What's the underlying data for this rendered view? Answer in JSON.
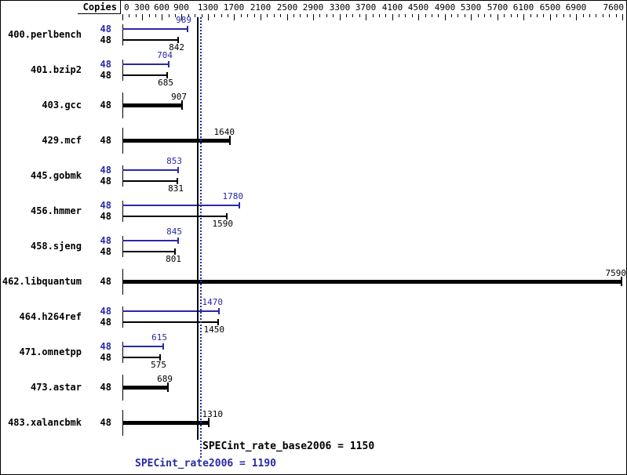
{
  "header": {
    "copies_label": "Copies"
  },
  "colors": {
    "peak_blue": "#2929a8",
    "base_black": "#000000",
    "background": "#ffffff"
  },
  "legend": {
    "base_text": "SPECint_rate_base2006 = 1150",
    "peak_text": "SPECint_rate2006 = 1190"
  },
  "chart_data": {
    "type": "bar",
    "orientation": "horizontal",
    "title": "",
    "xlabel": "",
    "ylabel": "Copies",
    "xlim": [
      0,
      7600
    ],
    "x_tick_step": 100,
    "x_labeled_ticks": [
      0,
      300,
      600,
      900,
      1300,
      1700,
      2100,
      2500,
      2900,
      3300,
      3700,
      4100,
      4500,
      4900,
      5300,
      5700,
      6100,
      6500,
      6900,
      7600
    ],
    "grid": false,
    "series_legend": [
      {
        "name": "peak (SPECint_rate2006)",
        "color": "#2929a8"
      },
      {
        "name": "base (SPECint_rate_base2006)",
        "color": "#000000"
      }
    ],
    "benchmarks": [
      {
        "name": "400.perlbench",
        "copies": 48,
        "peak": 989,
        "base": 842,
        "single_bar": false
      },
      {
        "name": "401.bzip2",
        "copies": 48,
        "peak": 704,
        "base": 685,
        "single_bar": false
      },
      {
        "name": "403.gcc",
        "copies": 48,
        "peak": null,
        "base": 907,
        "single_bar": true
      },
      {
        "name": "429.mcf",
        "copies": 48,
        "peak": null,
        "base": 1640,
        "single_bar": true
      },
      {
        "name": "445.gobmk",
        "copies": 48,
        "peak": 853,
        "base": 831,
        "single_bar": false
      },
      {
        "name": "456.hmmer",
        "copies": 48,
        "peak": 1780,
        "base": 1590,
        "single_bar": false
      },
      {
        "name": "458.sjeng",
        "copies": 48,
        "peak": 845,
        "base": 801,
        "single_bar": false
      },
      {
        "name": "462.libquantum",
        "copies": 48,
        "peak": null,
        "base": 7590,
        "single_bar": true
      },
      {
        "name": "464.h264ref",
        "copies": 48,
        "peak": 1470,
        "base": 1450,
        "single_bar": false
      },
      {
        "name": "471.omnetpp",
        "copies": 48,
        "peak": 615,
        "base": 575,
        "single_bar": false
      },
      {
        "name": "473.astar",
        "copies": 48,
        "peak": null,
        "base": 689,
        "single_bar": true
      },
      {
        "name": "483.xalancbmk",
        "copies": 48,
        "peak": null,
        "base": 1310,
        "single_bar": true,
        "label_dx": 12
      }
    ],
    "reference_lines": [
      {
        "name": "SPECint_rate_base2006",
        "value": 1150,
        "style": "solid",
        "color": "#000000"
      },
      {
        "name": "SPECint_rate2006",
        "value": 1190,
        "style": "dotted",
        "color": "#2929a8"
      }
    ]
  }
}
